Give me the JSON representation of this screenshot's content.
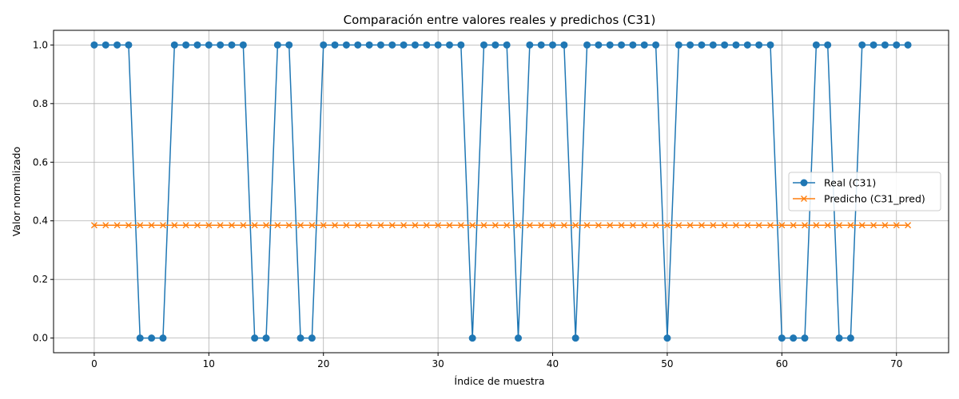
{
  "chart_data": {
    "type": "line",
    "title": "Comparación entre valores reales y predichos (C31)",
    "xlabel": "Índice de muestra",
    "ylabel": "Valor normalizado",
    "xlim": [
      -3.55,
      74.55
    ],
    "ylim": [
      -0.05,
      1.05
    ],
    "xticks": [
      0,
      10,
      20,
      30,
      40,
      50,
      60,
      70
    ],
    "yticks": [
      0.0,
      0.2,
      0.4,
      0.6,
      0.8,
      1.0
    ],
    "grid": true,
    "legend_position": "center-right",
    "x": [
      0,
      1,
      2,
      3,
      4,
      5,
      6,
      7,
      8,
      9,
      10,
      11,
      12,
      13,
      14,
      15,
      16,
      17,
      18,
      19,
      20,
      21,
      22,
      23,
      24,
      25,
      26,
      27,
      28,
      29,
      30,
      31,
      32,
      33,
      34,
      35,
      36,
      37,
      38,
      39,
      40,
      41,
      42,
      43,
      44,
      45,
      46,
      47,
      48,
      49,
      50,
      51,
      52,
      53,
      54,
      55,
      56,
      57,
      58,
      59,
      60,
      61,
      62,
      63,
      64,
      65,
      66,
      67,
      68,
      69,
      70,
      71
    ],
    "series": [
      {
        "name": "Real (C31)",
        "color": "#1f77b4",
        "marker": "circle",
        "values": [
          1,
          1,
          1,
          1,
          0,
          0,
          0,
          1,
          1,
          1,
          1,
          1,
          1,
          1,
          0,
          0,
          1,
          1,
          0,
          0,
          1,
          1,
          1,
          1,
          1,
          1,
          1,
          1,
          1,
          1,
          1,
          1,
          1,
          0,
          1,
          1,
          1,
          0,
          1,
          1,
          1,
          1,
          0,
          1,
          1,
          1,
          1,
          1,
          1,
          1,
          0,
          1,
          1,
          1,
          1,
          1,
          1,
          1,
          1,
          1,
          0,
          0,
          0,
          1,
          1,
          0,
          0,
          1,
          1,
          1,
          1,
          1
        ]
      },
      {
        "name": "Predicho (C31_pred)",
        "color": "#ff7f0e",
        "marker": "x",
        "constant_value": 0.385
      }
    ]
  }
}
